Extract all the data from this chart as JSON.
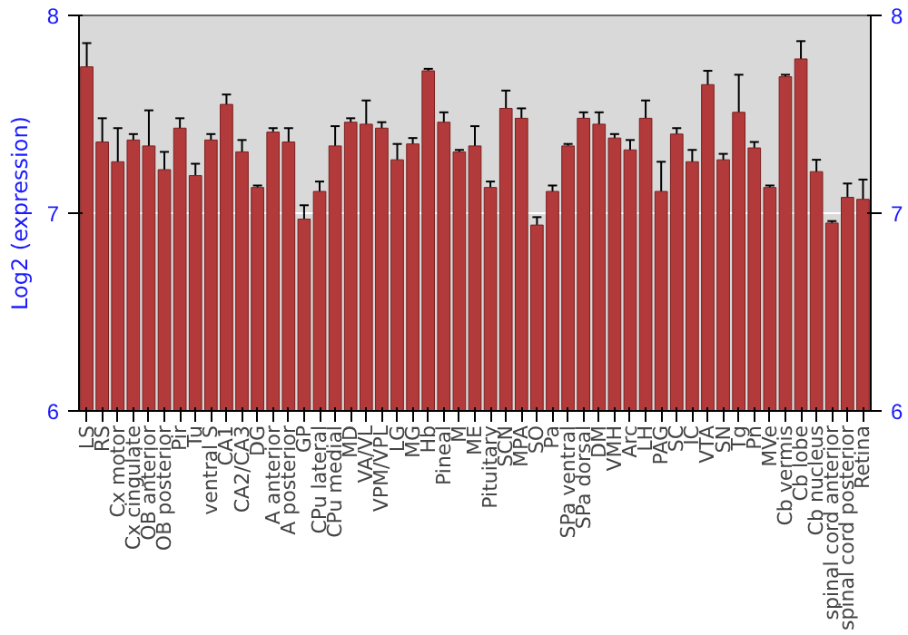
{
  "chart_data": {
    "type": "bar",
    "ylabel": "Log2 (expression)",
    "categories": [
      "LS",
      "RS",
      "Cx motor",
      "Cx cingulate",
      "OB anterior",
      "OB posterior",
      "Pir",
      "Tu",
      "ventral S",
      "CA1",
      "CA2/CA3",
      "DG",
      "A anterior",
      "A posterior",
      "GP",
      "CPu lateral",
      "CPu medial",
      "MD",
      "VA/VL",
      "VPM/VPL",
      "LG",
      "MG",
      "Hb",
      "Pineal",
      "M",
      "ME",
      "Pituitary",
      "SCN",
      "MPA",
      "SO",
      "Pa",
      "SPa ventral",
      "SPa dorsal",
      "DM",
      "VMH",
      "Arc",
      "LH",
      "PAG",
      "SC",
      "IC",
      "VTA",
      "SN",
      "Tg",
      "Pn",
      "MVe",
      "Cb vermis",
      "Cb lobe",
      "Cb nucleus",
      "spinal cord anterior",
      "spinal cord posterior",
      "Retina"
    ],
    "values": [
      7.74,
      7.36,
      7.26,
      7.37,
      7.34,
      7.22,
      7.43,
      7.19,
      7.37,
      7.55,
      7.31,
      7.13,
      7.41,
      7.36,
      6.97,
      7.11,
      7.34,
      7.46,
      7.45,
      7.43,
      7.27,
      7.35,
      7.72,
      7.46,
      7.31,
      7.34,
      7.13,
      7.53,
      7.48,
      6.94,
      7.11,
      7.34,
      7.48,
      7.45,
      7.38,
      7.32,
      7.48,
      7.11,
      7.4,
      7.26,
      7.65,
      7.27,
      7.51,
      7.33,
      7.13,
      7.69,
      7.78,
      7.21,
      6.95,
      7.08,
      7.07
    ],
    "errors": [
      0.12,
      0.12,
      0.17,
      0.03,
      0.18,
      0.09,
      0.05,
      0.06,
      0.03,
      0.05,
      0.06,
      0.01,
      0.02,
      0.07,
      0.07,
      0.05,
      0.1,
      0.02,
      0.12,
      0.03,
      0.08,
      0.03,
      0.01,
      0.05,
      0.01,
      0.1,
      0.03,
      0.09,
      0.05,
      0.04,
      0.03,
      0.01,
      0.03,
      0.06,
      0.02,
      0.05,
      0.09,
      0.15,
      0.03,
      0.06,
      0.07,
      0.03,
      0.19,
      0.03,
      0.01,
      0.01,
      0.09,
      0.06,
      0.01,
      0.07,
      0.1
    ],
    "color": "#b33a3a",
    "ylim": [
      6,
      8
    ],
    "yticks": [
      6,
      7,
      8
    ],
    "y2lim": [
      6,
      8
    ],
    "y2ticks": [
      6,
      7,
      8
    ],
    "grid": "y"
  }
}
